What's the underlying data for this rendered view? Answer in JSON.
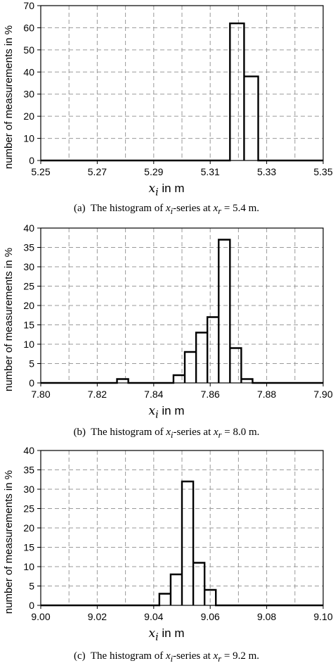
{
  "ylabel": "number of measurements  in %",
  "xlabel_sym": "x",
  "xlabel_sub": "i",
  "xlabel_unit": " in m",
  "chart_data": [
    {
      "type": "bar",
      "panel_label": "(a)",
      "caption_text": "The histogram of",
      "caption_series": "-series at",
      "caption_value": "= 5.4 m.",
      "xlim": [
        5.25,
        5.35
      ],
      "ylim": [
        0,
        70
      ],
      "xticks": [
        "5.25",
        "5.27",
        "5.29",
        "5.31",
        "5.33",
        "5.35"
      ],
      "yticks": [
        "0",
        "10",
        "20",
        "30",
        "40",
        "50",
        "60",
        "70"
      ],
      "bins": [
        {
          "x0": 5.317,
          "x1": 5.322,
          "value": 62
        },
        {
          "x0": 5.322,
          "x1": 5.327,
          "value": 38
        }
      ]
    },
    {
      "type": "bar",
      "panel_label": "(b)",
      "caption_text": "The histogram of",
      "caption_series": "-series at",
      "caption_value": "= 8.0 m.",
      "xlim": [
        7.8,
        7.9
      ],
      "ylim": [
        0,
        40
      ],
      "xticks": [
        "7.80",
        "7.82",
        "7.84",
        "7.86",
        "7.88",
        "7.90"
      ],
      "yticks": [
        "0",
        "5",
        "10",
        "15",
        "20",
        "25",
        "30",
        "35",
        "40"
      ],
      "bins": [
        {
          "x0": 7.827,
          "x1": 7.831,
          "value": 1
        },
        {
          "x0": 7.831,
          "x1": 7.835,
          "value": 0
        },
        {
          "x0": 7.835,
          "x1": 7.839,
          "value": 0
        },
        {
          "x0": 7.839,
          "x1": 7.843,
          "value": 0
        },
        {
          "x0": 7.843,
          "x1": 7.847,
          "value": 0
        },
        {
          "x0": 7.847,
          "x1": 7.851,
          "value": 2
        },
        {
          "x0": 7.851,
          "x1": 7.855,
          "value": 8
        },
        {
          "x0": 7.855,
          "x1": 7.859,
          "value": 13
        },
        {
          "x0": 7.859,
          "x1": 7.863,
          "value": 17
        },
        {
          "x0": 7.863,
          "x1": 7.867,
          "value": 37
        },
        {
          "x0": 7.867,
          "x1": 7.871,
          "value": 9
        },
        {
          "x0": 7.871,
          "x1": 7.875,
          "value": 1
        }
      ]
    },
    {
      "type": "bar",
      "panel_label": "(c)",
      "caption_text": "The histogram of",
      "caption_series": "-series at",
      "caption_value": "= 9.2 m.",
      "xlim": [
        9.0,
        9.1
      ],
      "ylim": [
        0,
        40
      ],
      "xticks": [
        "9.00",
        "9.02",
        "9.04",
        "9.06",
        "9.08",
        "9.10"
      ],
      "yticks": [
        "0",
        "5",
        "10",
        "15",
        "20",
        "25",
        "30",
        "35",
        "40"
      ],
      "bins": [
        {
          "x0": 9.042,
          "x1": 9.046,
          "value": 3
        },
        {
          "x0": 9.046,
          "x1": 9.05,
          "value": 8
        },
        {
          "x0": 9.05,
          "x1": 9.054,
          "value": 32
        },
        {
          "x0": 9.054,
          "x1": 9.058,
          "value": 11
        },
        {
          "x0": 9.058,
          "x1": 9.062,
          "value": 4
        }
      ]
    }
  ]
}
